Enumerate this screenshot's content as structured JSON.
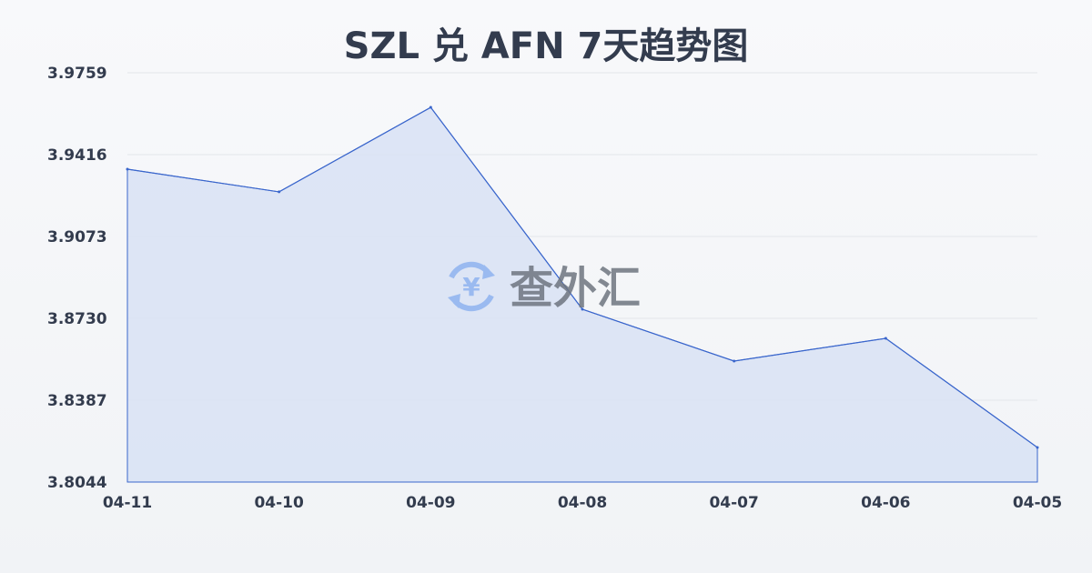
{
  "chart_data": {
    "type": "area",
    "title": "SZL 兑 AFN 7天趋势图",
    "categories": [
      "04-11",
      "04-10",
      "04-09",
      "04-08",
      "04-07",
      "04-06",
      "04-05"
    ],
    "series": [
      {
        "values": [
          3.9355,
          3.926,
          3.9614,
          3.8768,
          3.8551,
          3.8646,
          3.8189
        ]
      }
    ],
    "yticks": [
      "3.9759",
      "3.9416",
      "3.9073",
      "3.8730",
      "3.8387",
      "3.8044"
    ],
    "ylim": [
      3.8044,
      3.9759
    ],
    "grid": true,
    "colors": {
      "line": "#3a66cc",
      "fill": "#d8e2f5",
      "grid": "#e3e6ea",
      "text": "#333c4e"
    }
  },
  "watermark": {
    "text": "查外汇",
    "icon": "yen-exchange-icon",
    "icon_color": "#8fb3f0",
    "text_color": "#6e7580"
  }
}
